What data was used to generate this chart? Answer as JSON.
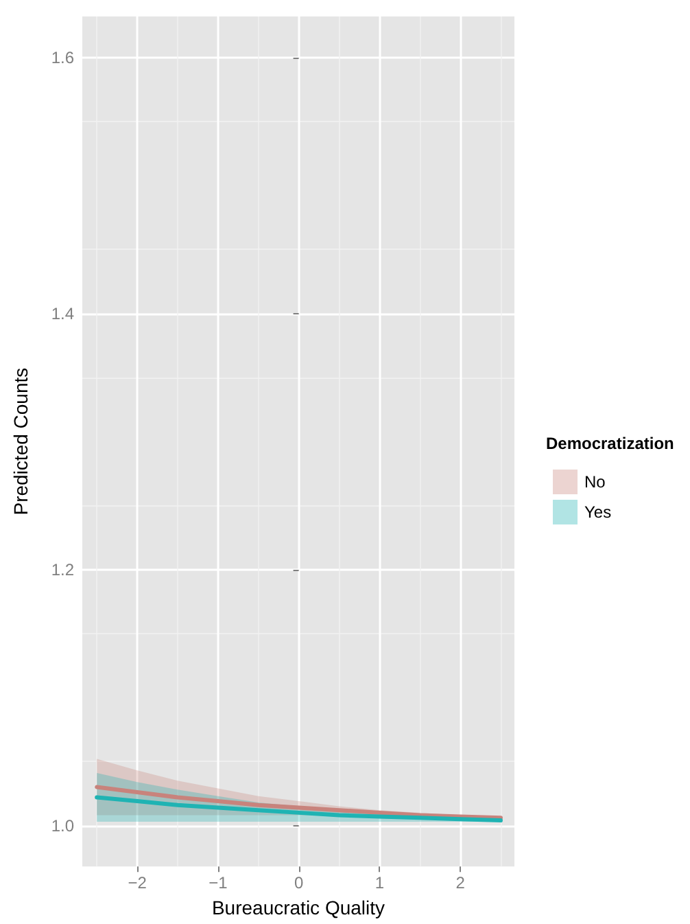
{
  "chart_data": {
    "type": "line",
    "xlabel": "Bureaucratic Quality",
    "ylabel": "Predicted Counts",
    "legend_title": "Democratization",
    "legend": "right",
    "grid": true,
    "marker": "none",
    "line_style": "solid",
    "x": [
      -2.5,
      -2,
      -1.5,
      -1,
      -0.5,
      0,
      0.5,
      1,
      1.5,
      2,
      2.5
    ],
    "xlim": [
      -2.68,
      2.67
    ],
    "xticks": [
      {
        "value": -2,
        "label": "−2"
      },
      {
        "value": -1,
        "label": "−1"
      },
      0,
      1,
      2
    ],
    "ylim": [
      0.968,
      1.632
    ],
    "yticks": [
      {
        "value": 1.0,
        "label": "1.0"
      },
      1.2,
      1.4,
      1.6
    ],
    "series": [
      {
        "name": "No",
        "color": "#c8837c",
        "values": [
          1.03,
          1.026,
          1.022,
          1.019,
          1.016,
          1.014,
          1.012,
          1.01,
          1.008,
          1.007,
          1.006
        ],
        "lower": [
          1.008,
          1.008,
          1.008,
          1.008,
          1.008,
          1.008,
          1.008,
          1.007,
          1.006,
          1.005,
          1.005
        ],
        "upper": [
          1.052,
          1.043,
          1.035,
          1.029,
          1.023,
          1.019,
          1.015,
          1.012,
          1.01,
          1.008,
          1.007
        ]
      },
      {
        "name": "Yes",
        "color": "#1fb3b3",
        "values": [
          1.022,
          1.019,
          1.016,
          1.014,
          1.012,
          1.01,
          1.008,
          1.007,
          1.006,
          1.005,
          1.004
        ],
        "lower": [
          1.003,
          1.003,
          1.003,
          1.003,
          1.003,
          1.003,
          1.003,
          1.003,
          1.003,
          1.003,
          1.003
        ],
        "upper": [
          1.041,
          1.034,
          1.028,
          1.023,
          1.018,
          1.015,
          1.012,
          1.009,
          1.007,
          1.006,
          1.005
        ]
      }
    ]
  }
}
